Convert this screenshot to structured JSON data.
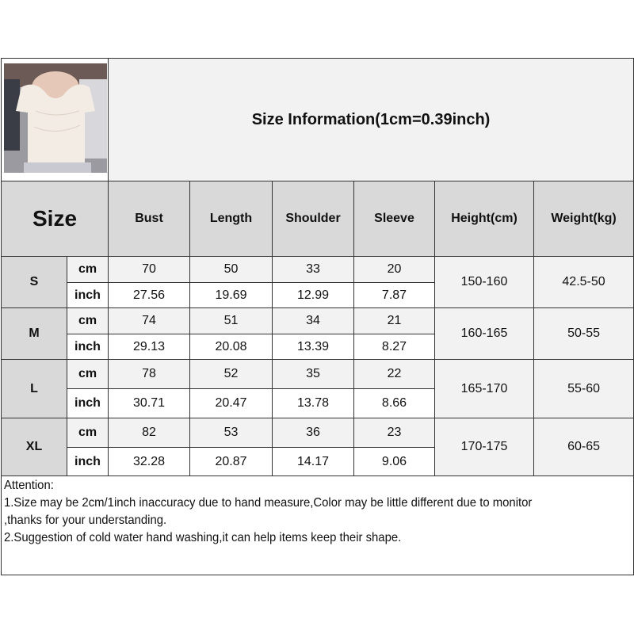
{
  "title": "Size Information(1cm=0.39inch)",
  "header": {
    "size": "Size",
    "columns": [
      "Bust",
      "Length",
      "Shoulder",
      "Sleeve",
      "Height(cm)",
      "Weight(kg)"
    ]
  },
  "units": {
    "cm": "cm",
    "inch": "inch"
  },
  "sizes": [
    {
      "label": "S",
      "cm": [
        "70",
        "50",
        "33",
        "20"
      ],
      "inch": [
        "27.56",
        "19.69",
        "12.99",
        "7.87"
      ],
      "height": "150-160",
      "weight": "42.5-50"
    },
    {
      "label": "M",
      "cm": [
        "74",
        "51",
        "34",
        "21"
      ],
      "inch": [
        "29.13",
        "20.08",
        "13.39",
        "8.27"
      ],
      "height": "160-165",
      "weight": "50-55"
    },
    {
      "label": "L",
      "cm": [
        "78",
        "52",
        "35",
        "22"
      ],
      "inch": [
        "30.71",
        "20.47",
        "13.78",
        "8.66"
      ],
      "height": "165-170",
      "weight": "55-60"
    },
    {
      "label": "XL",
      "cm": [
        "82",
        "53",
        "36",
        "23"
      ],
      "inch": [
        "32.28",
        "20.87",
        "14.17",
        "9.06"
      ],
      "height": "170-175",
      "weight": "60-65"
    }
  ],
  "attention": [
    "Attention:",
    "1.Size may be 2cm/1inch inaccuracy due to hand measure,Color may be little different due to monitor",
    ",thanks for your understanding.",
    "2.Suggestion of cold water hand washing,it can help items keep their shape."
  ]
}
